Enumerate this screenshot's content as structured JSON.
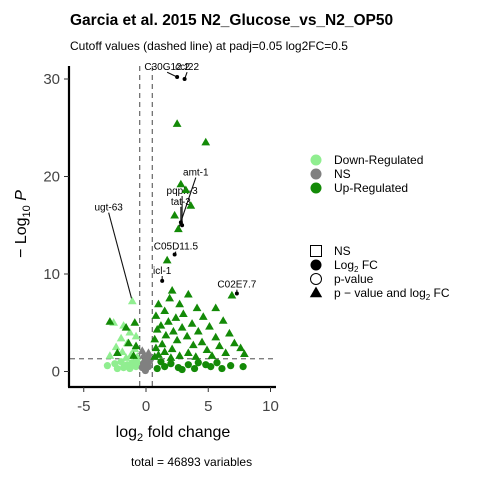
{
  "chart_data": {
    "type": "scatter",
    "title": "Garcia et al. 2015 N2_Glucose_vs_N2_OP50",
    "subtitle": "Cutoff values (dashed line) at padj=0.05 log2FC=0.5",
    "xlabel": "log2 fold change",
    "ylabel": "-Log10 P",
    "caption": "total = 46893 variables",
    "xlim": [
      -6,
      10
    ],
    "ylim": [
      -1,
      31.5
    ],
    "x_ticks": [
      "-5",
      "0",
      "5",
      "10"
    ],
    "y_ticks": [
      "0",
      "10",
      "20",
      "30"
    ],
    "cutoffs": {
      "x": [
        -0.5,
        0.5
      ],
      "y": 1.3
    },
    "colors": {
      "down": "#90ee90",
      "ns": "#808080",
      "up": "#138a07"
    },
    "legend_colors": {
      "items": [
        "Down-Regulated",
        "NS",
        "Up-Regulated"
      ]
    },
    "legend_shapes": {
      "items": [
        {
          "shape": "square-open",
          "label": "NS"
        },
        {
          "shape": "circle-filled",
          "label": "Log",
          "sub": "2",
          "suffix": " FC"
        },
        {
          "shape": "circle-open",
          "label": "p-value"
        },
        {
          "shape": "triangle",
          "label": "p − value and log",
          "sub": "2",
          "suffix": " FC"
        }
      ]
    },
    "labeled_points": [
      {
        "label": "C30G12.2",
        "x": 2.5,
        "y": 30.2,
        "lx": 1.7,
        "ly": 30.9
      },
      {
        "label": "cct22",
        "x": 3.1,
        "y": 30.0,
        "lx": 3.3,
        "ly": 30.9
      },
      {
        "label": "amt-1",
        "x": 2.6,
        "y": 14.6,
        "lx": 4.0,
        "ly": 20.1
      },
      {
        "label": "pqph-3",
        "x": 2.9,
        "y": 15.0,
        "lx": 2.9,
        "ly": 18.2
      },
      {
        "label": "tat-3",
        "x": 2.8,
        "y": 15.3,
        "lx": 2.8,
        "ly": 17.1
      },
      {
        "label": "ugt-63",
        "x": -1.1,
        "y": 7.2,
        "lx": -3.0,
        "ly": 16.5
      },
      {
        "label": "C05D11.5",
        "x": 2.3,
        "y": 12.0,
        "lx": 2.4,
        "ly": 12.5
      },
      {
        "label": "icl-1",
        "x": 1.3,
        "y": 9.3,
        "lx": 1.3,
        "ly": 10.0
      },
      {
        "label": "C02E7.7",
        "x": 7.3,
        "y": 8.0,
        "lx": 7.3,
        "ly": 8.6
      }
    ],
    "up_triangles": [
      [
        2.5,
        25.4
      ],
      [
        4.8,
        23.5
      ],
      [
        2.8,
        19.2
      ],
      [
        3.2,
        18.6
      ],
      [
        3.6,
        17.0
      ],
      [
        2.3,
        16.0
      ],
      [
        2.6,
        14.6
      ],
      [
        1.7,
        11.4
      ],
      [
        6.9,
        7.8
      ],
      [
        2.1,
        8.3
      ],
      [
        1.9,
        7.5
      ],
      [
        3.4,
        7.9
      ],
      [
        1.0,
        6.9
      ],
      [
        5.6,
        6.5
      ],
      [
        2.7,
        6.9
      ],
      [
        4.1,
        6.5
      ],
      [
        1.5,
        6.2
      ],
      [
        3.0,
        5.9
      ],
      [
        0.8,
        5.7
      ],
      [
        2.4,
        5.5
      ],
      [
        4.6,
        5.6
      ],
      [
        1.8,
        5.1
      ],
      [
        6.2,
        5.2
      ],
      [
        3.7,
        4.9
      ],
      [
        1.2,
        4.7
      ],
      [
        2.9,
        4.5
      ],
      [
        5.1,
        4.6
      ],
      [
        0.9,
        4.3
      ],
      [
        2.2,
        4.1
      ],
      [
        4.2,
        4.1
      ],
      [
        6.7,
        3.9
      ],
      [
        1.6,
        3.7
      ],
      [
        3.3,
        3.6
      ],
      [
        5.6,
        3.5
      ],
      [
        0.7,
        3.3
      ],
      [
        2.5,
        3.2
      ],
      [
        4.5,
        3.0
      ],
      [
        7.1,
        2.9
      ],
      [
        1.3,
        2.8
      ],
      [
        3.8,
        2.7
      ],
      [
        5.9,
        2.6
      ],
      [
        0.8,
        2.4
      ],
      [
        2.1,
        2.3
      ],
      [
        4.9,
        2.2
      ],
      [
        7.6,
        2.4
      ],
      [
        1.5,
        2.0
      ],
      [
        3.4,
        1.9
      ],
      [
        6.4,
        1.9
      ],
      [
        1.0,
        1.7
      ],
      [
        2.7,
        1.6
      ],
      [
        5.3,
        1.6
      ],
      [
        7.9,
        1.8
      ],
      [
        0.7,
        1.5
      ],
      [
        4.0,
        1.5
      ],
      [
        2.0,
        1.4
      ],
      [
        -0.8,
        2.6
      ],
      [
        -1.4,
        2.9
      ],
      [
        -2.3,
        1.9
      ],
      [
        -1.0,
        1.6
      ],
      [
        -1.6,
        4.5
      ],
      [
        -0.9,
        5.0
      ],
      [
        -2.9,
        5.1
      ]
    ],
    "up_circles": [
      [
        7.8,
        0.5
      ],
      [
        6.8,
        0.6
      ],
      [
        5.2,
        0.5
      ],
      [
        4.2,
        0.9
      ],
      [
        3.4,
        0.7
      ],
      [
        2.6,
        0.4
      ],
      [
        2.0,
        0.8
      ],
      [
        1.5,
        0.5
      ],
      [
        1.2,
        1.0
      ],
      [
        0.9,
        0.3
      ],
      [
        2.9,
        0.2
      ],
      [
        3.9,
        0.3
      ],
      [
        4.8,
        0.7
      ],
      [
        5.7,
        0.9
      ],
      [
        6.1,
        0.3
      ]
    ],
    "down_triangles": [
      [
        -1.1,
        7.2
      ],
      [
        -2.6,
        5.0
      ],
      [
        -1.8,
        4.7
      ],
      [
        -1.3,
        4.0
      ],
      [
        -2.0,
        3.4
      ],
      [
        -0.8,
        3.6
      ],
      [
        -1.5,
        2.9
      ],
      [
        -2.4,
        2.5
      ],
      [
        -0.9,
        2.3
      ],
      [
        -1.9,
        2.0
      ],
      [
        -1.2,
        1.7
      ],
      [
        -0.7,
        1.5
      ],
      [
        -2.9,
        1.6
      ],
      [
        -1.6,
        1.4
      ]
    ],
    "down_circles": [
      [
        -2.5,
        0.8
      ],
      [
        -2.0,
        1.0
      ],
      [
        -1.5,
        0.7
      ],
      [
        -1.1,
        0.9
      ],
      [
        -0.8,
        0.5
      ],
      [
        -3.1,
        0.6
      ],
      [
        -1.8,
        0.4
      ],
      [
        -1.3,
        0.3
      ],
      [
        -0.7,
        0.9
      ],
      [
        -2.3,
        0.3
      ]
    ],
    "ns_triangles": [
      [
        0.2,
        1.9
      ],
      [
        -0.2,
        1.6
      ],
      [
        0.1,
        1.5
      ],
      [
        -0.3,
        2.1
      ],
      [
        0.3,
        1.4
      ]
    ],
    "ns_circles": [
      [
        0.0,
        0.3
      ],
      [
        0.1,
        0.7
      ],
      [
        -0.1,
        1.0
      ],
      [
        0.2,
        0.5
      ],
      [
        -0.2,
        0.8
      ],
      [
        0.3,
        1.1
      ],
      [
        -0.3,
        0.4
      ],
      [
        0.05,
        1.2
      ],
      [
        -0.05,
        0.1
      ],
      [
        0.15,
        0.9
      ]
    ]
  }
}
